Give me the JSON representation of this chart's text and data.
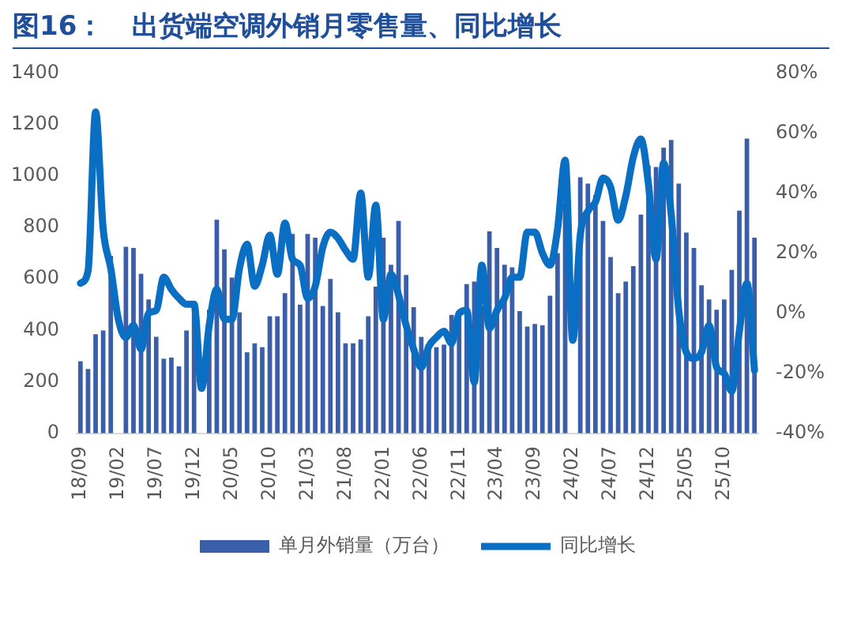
{
  "chart_data": {
    "type": "bar",
    "title": "图16：   出货端空调外销月零售量、同比增长",
    "categories": [
      "18/09",
      null,
      null,
      null,
      null,
      "19/02",
      null,
      null,
      null,
      null,
      "19/07",
      null,
      null,
      null,
      null,
      "19/12",
      null,
      null,
      null,
      null,
      "20/05",
      null,
      null,
      null,
      null,
      "20/10",
      null,
      null,
      null,
      null,
      "21/03",
      null,
      null,
      null,
      null,
      "21/08",
      null,
      null,
      null,
      null,
      "22/01",
      null,
      null,
      null,
      null,
      "22/06",
      null,
      null,
      null,
      null,
      "22/11",
      null,
      null,
      null,
      null,
      "23/04",
      null,
      null,
      null,
      null,
      "23/09",
      null,
      null,
      null,
      null,
      "24/02",
      null,
      null,
      null,
      null,
      "24/07",
      null,
      null,
      null,
      null,
      "24/12",
      null,
      null,
      null,
      null,
      "25/05",
      null,
      null,
      null,
      null,
      "25/10",
      null,
      null,
      null,
      null
    ],
    "series": [
      {
        "name": "单月外销量（万台）",
        "color": "#3a5ea8",
        "values": [
          280,
          250,
          385,
          400,
          690,
          null,
          725,
          720,
          620,
          520,
          375,
          290,
          295,
          260,
          400,
          495,
          null,
          480,
          830,
          715,
          605,
          470,
          315,
          350,
          335,
          455,
          455,
          545,
          775,
          500,
          775,
          760,
          495,
          600,
          470,
          350,
          350,
          365,
          455,
          570,
          760,
          655,
          825,
          615,
          490,
          375,
          330,
          335,
          345,
          460,
          470,
          580,
          590,
          495,
          785,
          720,
          655,
          645,
          475,
          415,
          425,
          420,
          535,
          700,
          895,
          null,
          995,
          970,
          925,
          825,
          685,
          545,
          590,
          650,
          850,
          1040,
          1035,
          1110,
          1140,
          970,
          780,
          720,
          575,
          520,
          480,
          520,
          635,
          865,
          1145,
          760
        ]
      },
      {
        "name": "同比增长",
        "type": "line",
        "axis": "y2",
        "color": "#0a6fc2",
        "values": [
          10,
          14,
          67,
          28,
          15,
          -2,
          -8,
          -4,
          -12,
          0,
          1,
          12,
          8,
          5,
          3,
          3,
          -25,
          -4,
          8,
          -2,
          -2,
          15,
          23,
          9,
          16,
          26,
          13,
          30,
          18,
          16,
          5,
          9,
          22,
          27,
          25,
          21,
          18,
          40,
          12,
          36,
          -2,
          13,
          6,
          -4,
          -12,
          -18,
          -11,
          -8,
          -6,
          -10,
          0,
          1,
          -23,
          16,
          -5,
          1,
          5,
          12,
          12,
          27,
          27,
          20,
          16,
          28,
          51,
          -9,
          26,
          34,
          37,
          45,
          42,
          31,
          39,
          52,
          58,
          43,
          18,
          50,
          33,
          1,
          -13,
          -15,
          -13,
          -4,
          -18,
          -20,
          -26,
          -6,
          10,
          -19
        ]
      }
    ],
    "ylim": [
      0,
      1400
    ],
    "yticks": [
      0,
      200,
      400,
      600,
      800,
      1000,
      1200,
      1400
    ],
    "y2lim": [
      -40,
      80
    ],
    "y2ticks": [
      {
        "value": -40,
        "label": "-40%"
      },
      {
        "value": -20,
        "label": "-20%"
      },
      {
        "value": 0,
        "label": "0%"
      },
      {
        "value": 20,
        "label": "20%"
      },
      {
        "value": 40,
        "label": "40%"
      },
      {
        "value": 60,
        "label": "60%"
      },
      {
        "value": 80,
        "label": "80%"
      }
    ],
    "grid": false,
    "legend": "bottom",
    "marker": "none",
    "line_style": "solid"
  }
}
